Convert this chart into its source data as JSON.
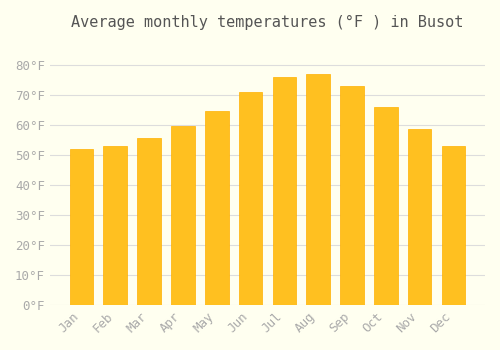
{
  "title": "Average monthly temperatures (°F ) in Busot",
  "months": [
    "Jan",
    "Feb",
    "Mar",
    "Apr",
    "May",
    "Jun",
    "Jul",
    "Aug",
    "Sep",
    "Oct",
    "Nov",
    "Dec"
  ],
  "values": [
    52,
    53,
    55.5,
    59.5,
    64.5,
    71,
    76,
    77,
    73,
    66,
    58.5,
    53
  ],
  "bar_color_main": "#FFC020",
  "bar_color_edge": "#FFB000",
  "background_color": "#FFFFF0",
  "grid_color": "#DDDDDD",
  "text_color": "#AAAAAA",
  "ylim": [
    0,
    88
  ],
  "yticks": [
    0,
    10,
    20,
    30,
    40,
    50,
    60,
    70,
    80
  ],
  "ytick_labels": [
    "0°F",
    "10°F",
    "20°F",
    "30°F",
    "40°F",
    "50°F",
    "60°F",
    "70°F",
    "80°F"
  ],
  "title_fontsize": 11,
  "tick_fontsize": 9
}
